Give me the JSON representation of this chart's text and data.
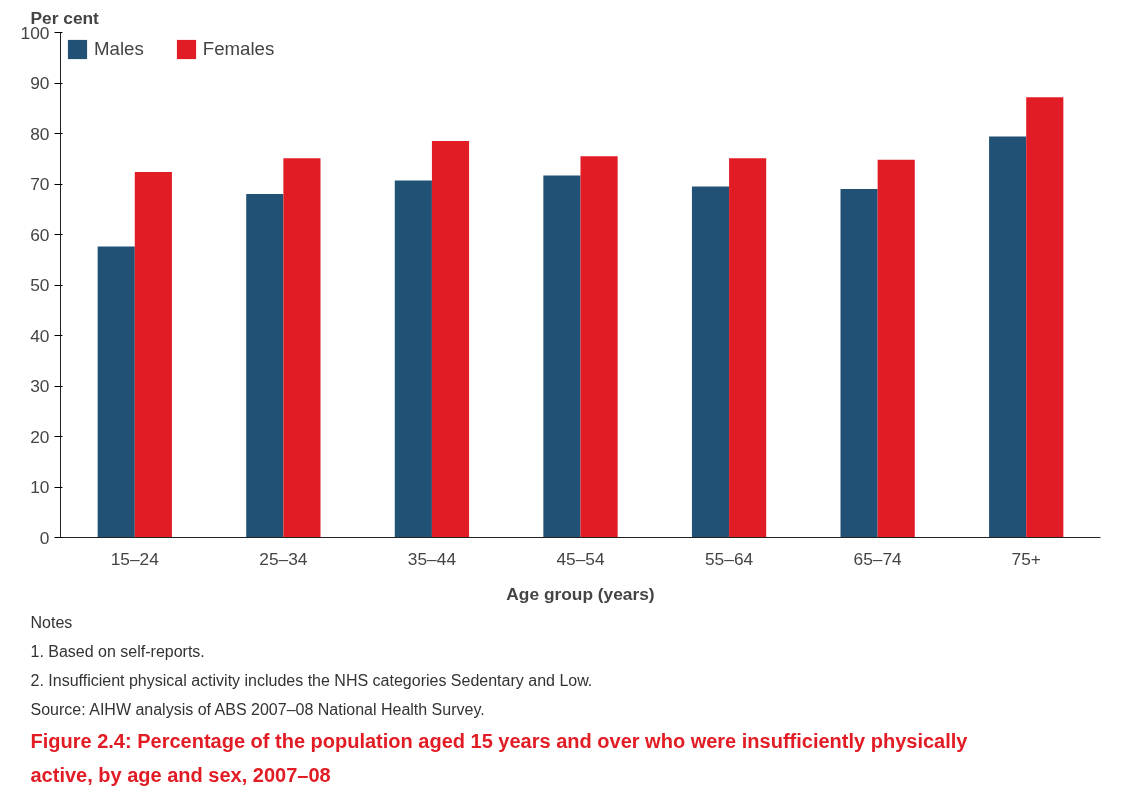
{
  "chart_data": {
    "type": "bar",
    "title": "Figure 2.4: Percentage of the population aged 15 years and over who were insufficiently physically active, by age and sex, 2007–08",
    "xlabel": "Age group (years)",
    "ylabel": "Per cent",
    "categories": [
      "15–24",
      "25–34",
      "35–44",
      "45–54",
      "55–64",
      "65–74",
      "75+"
    ],
    "series": [
      {
        "name": "Males",
        "color": "#215174",
        "values": [
          57.6,
          68.0,
          70.7,
          71.7,
          69.5,
          69.0,
          79.4
        ]
      },
      {
        "name": "Females",
        "color": "#e21c24",
        "values": [
          72.4,
          75.1,
          78.5,
          75.5,
          75.1,
          74.8,
          87.2
        ]
      }
    ],
    "ylim": [
      0,
      100
    ],
    "yticks": [
      0,
      10,
      20,
      30,
      40,
      50,
      60,
      70,
      80,
      90,
      100
    ],
    "grid": false,
    "legend": "top left",
    "annotations": [
      "Notes",
      "1. Based on self-reports.",
      "2. Insufficient physical activity includes the NHS categories Sedentary and Low.",
      "Source: AIHW analysis of ABS 2007–08 National Health Survey."
    ]
  }
}
